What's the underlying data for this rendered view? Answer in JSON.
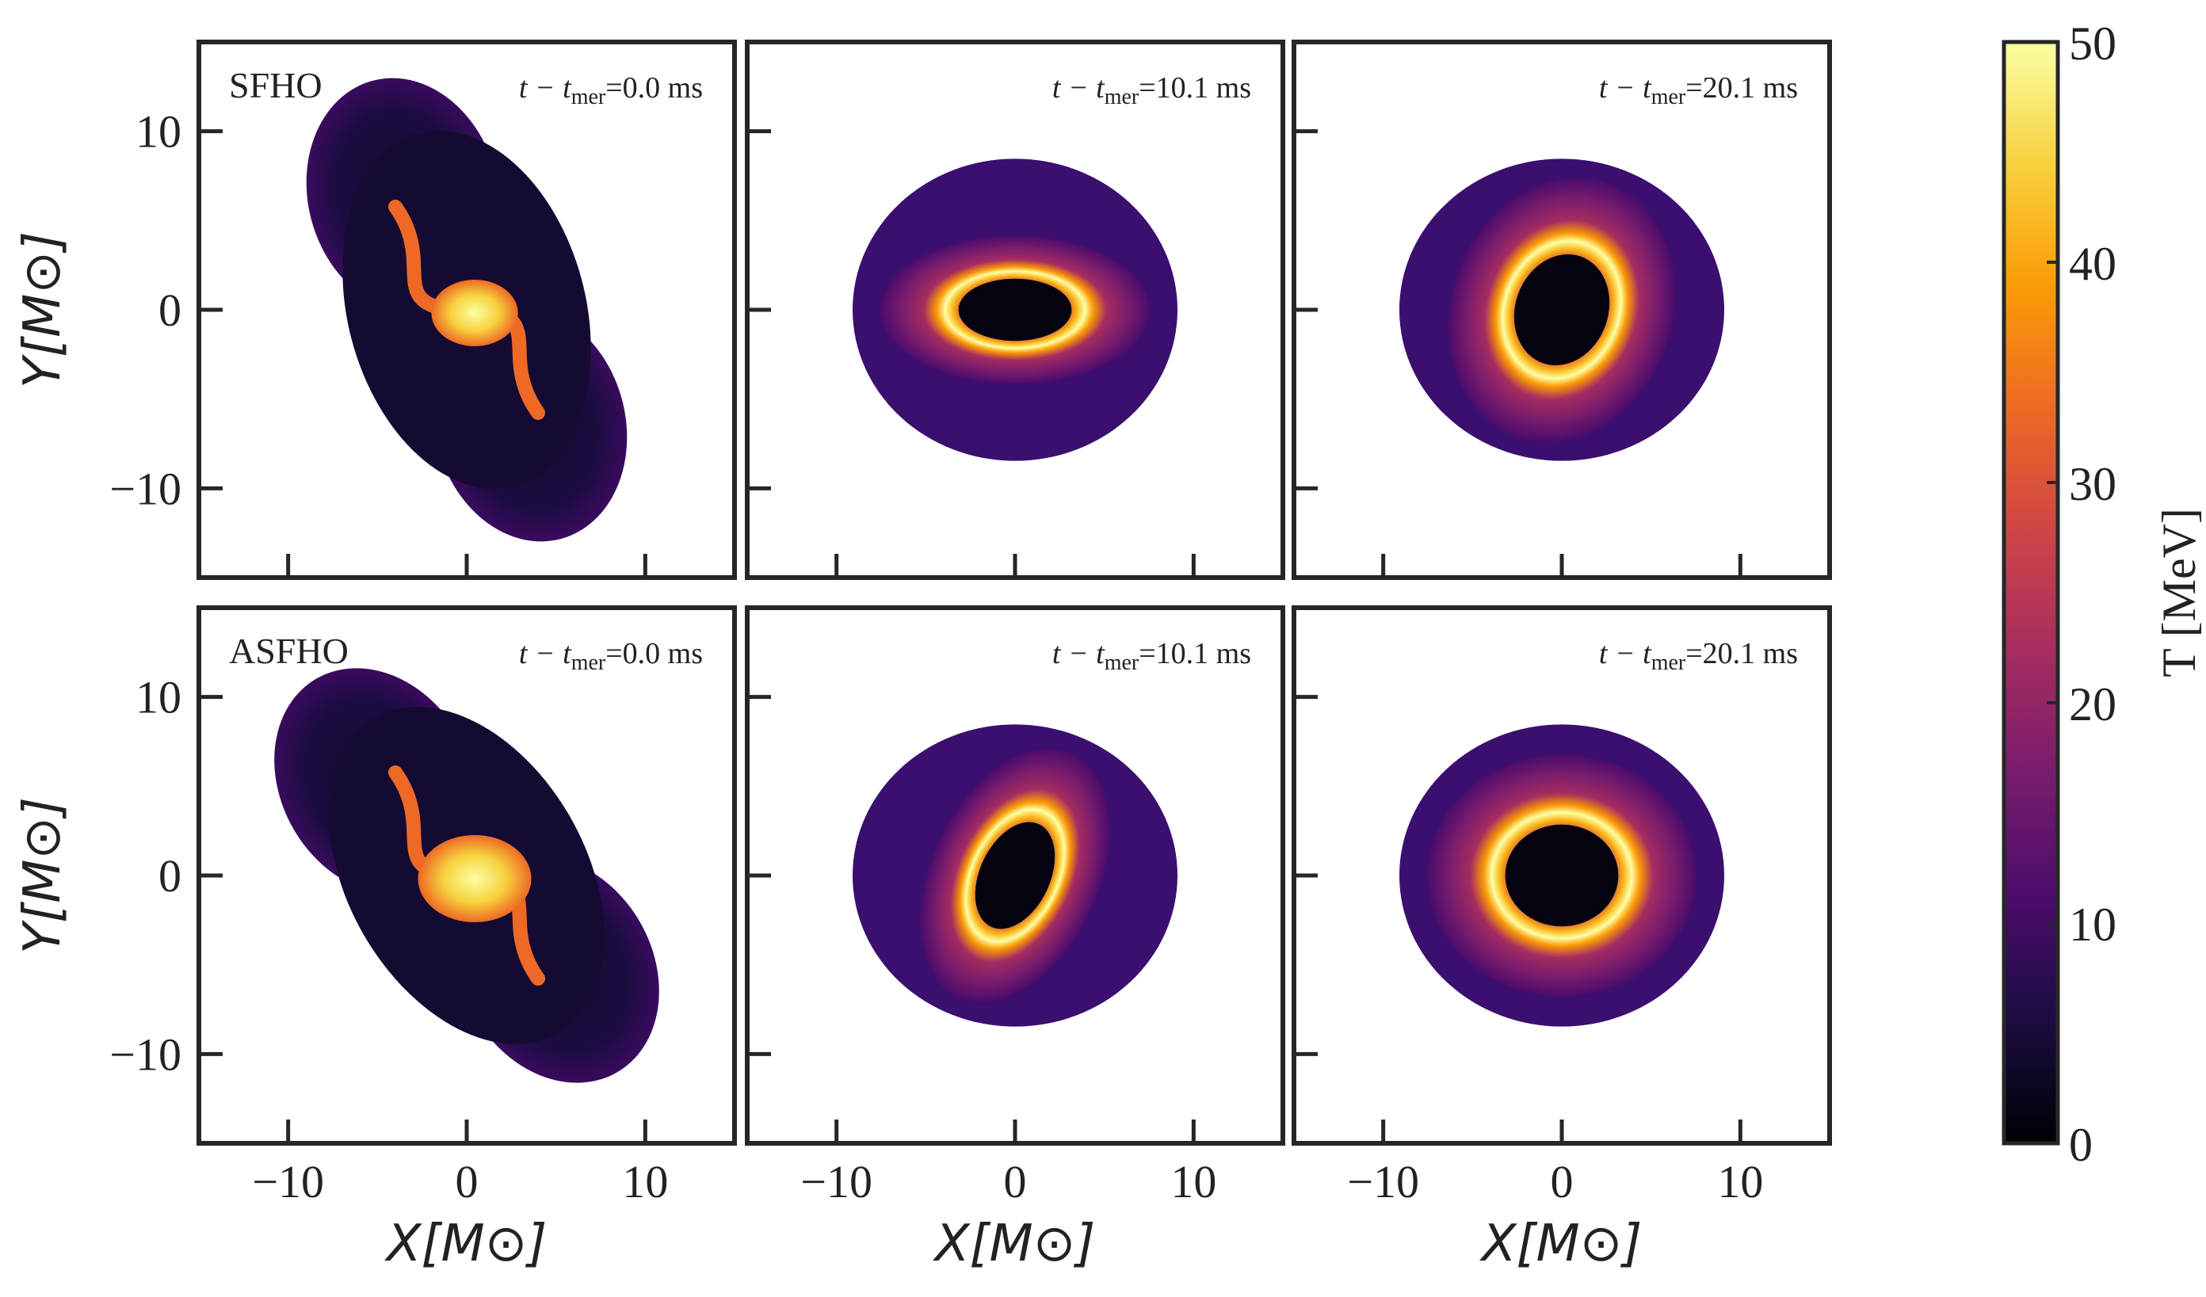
{
  "figure": {
    "colors": {
      "frame": "#262626",
      "cmap": [
        "#000004",
        "#1b0c41",
        "#4a0c6b",
        "#781c6d",
        "#a52c60",
        "#cf4446",
        "#ed6925",
        "#fb9b06",
        "#f7d13d",
        "#fcffa4"
      ]
    }
  },
  "chart_data": {
    "type": "heatmap",
    "layout": "2x3 panel grid, shared axes, single colorbar on the right",
    "xlabel": "X[M⊙]",
    "ylabel": "Y[M⊙]",
    "xlim": [
      -15,
      15
    ],
    "ylim": [
      -15,
      15
    ],
    "xticks": [
      -10,
      0,
      10
    ],
    "yticks": [
      -10,
      0,
      10
    ],
    "xtick_labels": [
      "−10",
      "0",
      "10"
    ],
    "ytick_labels": [
      "−10",
      "0",
      "10"
    ],
    "colorbar": {
      "label": "T [MeV]",
      "range": [
        0,
        50
      ],
      "ticks": [
        0,
        10,
        20,
        30,
        40,
        50
      ],
      "tick_labels": [
        "0",
        "10",
        "20",
        "30",
        "40",
        "50"
      ],
      "colormap": "inferno"
    },
    "rows": [
      {
        "eos": "SFHO",
        "panels": [
          {
            "time_label": "t − t",
            "time_sub": "mer",
            "time_value": "=0.0 ms",
            "t_ms": 0.0,
            "morphology": "merger"
          },
          {
            "time_label": "t − t",
            "time_sub": "mer",
            "time_value": "=10.1 ms",
            "t_ms": 10.1,
            "morphology": "disk",
            "ring_tilt_deg": 0,
            "ring_aspect": 0.55
          },
          {
            "time_label": "t − t",
            "time_sub": "mer",
            "time_value": "=20.1 ms",
            "t_ms": 20.1,
            "morphology": "disk",
            "ring_tilt_deg": -70,
            "ring_aspect": 0.82
          }
        ]
      },
      {
        "eos": "ASFHO",
        "panels": [
          {
            "time_label": "t − t",
            "time_sub": "mer",
            "time_value": "=0.0 ms",
            "t_ms": 0.0,
            "morphology": "merger"
          },
          {
            "time_label": "t − t",
            "time_sub": "mer",
            "time_value": "=10.1 ms",
            "t_ms": 10.1,
            "morphology": "disk",
            "ring_tilt_deg": -65,
            "ring_aspect": 0.62
          },
          {
            "time_label": "t − t",
            "time_sub": "mer",
            "time_value": "=20.1 ms",
            "t_ms": 20.1,
            "morphology": "disk",
            "ring_tilt_deg": 0,
            "ring_aspect": 0.9
          }
        ]
      }
    ]
  }
}
